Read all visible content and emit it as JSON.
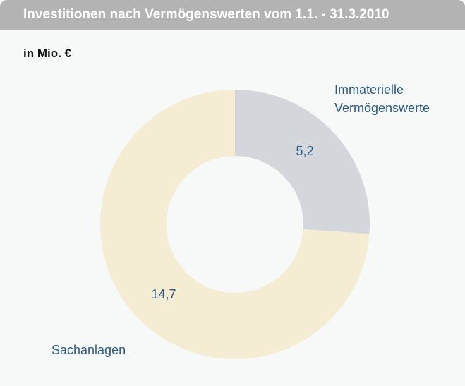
{
  "chart_data": {
    "type": "donut",
    "title": "Investitionen nach Vermögenswerten vom 1.1. - 31.3.2010",
    "subtitle": "in Mio. €",
    "categories": [
      "Immaterielle Vermögenswerte",
      "Sachanlagen"
    ],
    "values": [
      5.2,
      14.7
    ],
    "value_labels": [
      "5,2",
      "14,7"
    ],
    "colors": [
      "#d3d7db",
      "#f5ecd4"
    ]
  }
}
